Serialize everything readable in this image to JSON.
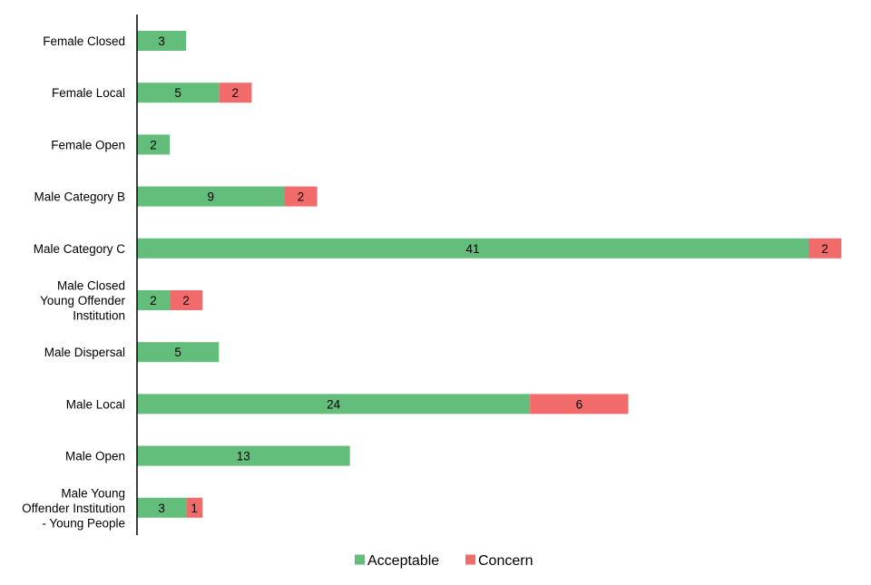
{
  "chart_data": {
    "type": "bar",
    "orientation": "horizontal",
    "stacked": true,
    "title": "",
    "xlabel": "",
    "ylabel": "",
    "grid": false,
    "legend_position": "bottom",
    "xlim": [
      0,
      43
    ],
    "categories": [
      "Female Closed",
      "Female Local",
      "Female Open",
      "Male Category B",
      "Male Category C",
      "Male Closed Young Offender Institution",
      "Male Dispersal",
      "Male Local",
      "Male Open",
      "Male Young Offender Institution - Young People"
    ],
    "category_lines": [
      [
        "Female Closed"
      ],
      [
        "Female Local"
      ],
      [
        "Female Open"
      ],
      [
        "Male Category B"
      ],
      [
        "Male Category C"
      ],
      [
        "Male Closed",
        "Young Offender",
        "Institution"
      ],
      [
        "Male Dispersal"
      ],
      [
        "Male Local"
      ],
      [
        "Male Open"
      ],
      [
        "Male Young",
        "Offender Institution",
        "- Young People"
      ]
    ],
    "series": [
      {
        "name": "Acceptable",
        "color": "#63be7b",
        "values": [
          3,
          5,
          2,
          9,
          41,
          2,
          5,
          24,
          13,
          3
        ]
      },
      {
        "name": "Concern",
        "color": "#f26b6b",
        "values": [
          0,
          2,
          0,
          2,
          2,
          2,
          0,
          6,
          0,
          1
        ]
      }
    ]
  }
}
